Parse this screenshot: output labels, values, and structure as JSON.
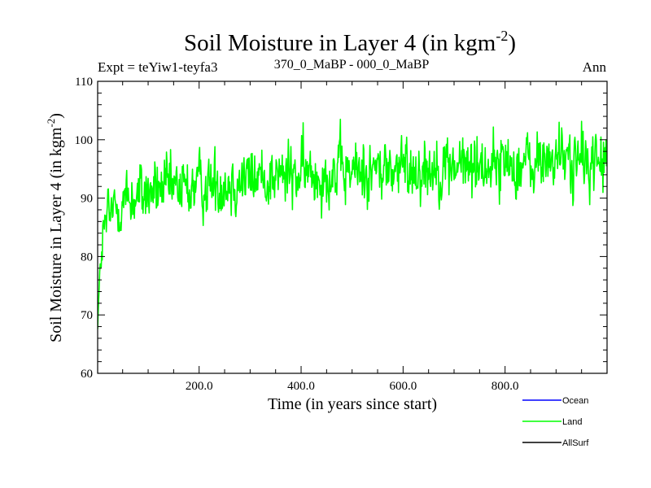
{
  "chart_data": {
    "type": "line",
    "title_main": "Soil Moisture in Layer 4 (in kgm",
    "title_sup": "-2",
    "title_close": ")",
    "expt_label": "Expt = teYiw1-teyfa3",
    "subtitle": "370_0_MaBP - 000_0_MaBP",
    "season": "Ann",
    "ylabel_main": "Soil Moisture in Layer 4 (in kgm",
    "ylabel_sup": "-2",
    "ylabel_close": ")",
    "xlabel": "Time (in years since start)",
    "xlim": [
      1,
      1000
    ],
    "ylim": [
      60,
      110
    ],
    "x_ticks": [
      {
        "value": 200,
        "label": "200.0"
      },
      {
        "value": 400,
        "label": "400.0"
      },
      {
        "value": 600,
        "label": "600.0"
      },
      {
        "value": 800,
        "label": "800.0"
      }
    ],
    "y_ticks": [
      {
        "value": 60,
        "label": "60"
      },
      {
        "value": 70,
        "label": "70"
      },
      {
        "value": 80,
        "label": "80"
      },
      {
        "value": 90,
        "label": "90"
      },
      {
        "value": 100,
        "label": "100"
      },
      {
        "value": 110,
        "label": "110"
      }
    ],
    "legend": [
      {
        "name": "Ocean",
        "color": "#0000ff"
      },
      {
        "name": "Land",
        "color": "#00ff00"
      },
      {
        "name": "AllSurf",
        "color": "#000000"
      }
    ],
    "series": [
      {
        "name": "Land",
        "color": "#00ff00",
        "n_points": 1000,
        "x_start": 1,
        "x_step": 1,
        "seed": 12345,
        "noise_amplitude": 2.6,
        "trend": [
          [
            1,
            69
          ],
          [
            5,
            76
          ],
          [
            10,
            82
          ],
          [
            18,
            86
          ],
          [
            40,
            89
          ],
          [
            100,
            91
          ],
          [
            200,
            92
          ],
          [
            300,
            93.5
          ],
          [
            400,
            94
          ],
          [
            500,
            94.5
          ],
          [
            600,
            95
          ],
          [
            700,
            95.5
          ],
          [
            800,
            96
          ],
          [
            850,
            95.5
          ],
          [
            900,
            97
          ],
          [
            950,
            96
          ],
          [
            1000,
            96.5
          ]
        ]
      }
    ]
  }
}
